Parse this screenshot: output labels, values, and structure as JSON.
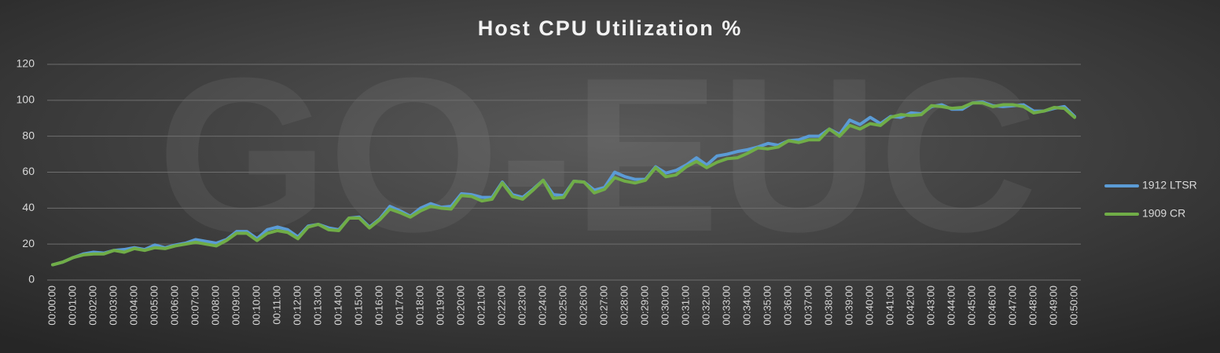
{
  "chart_data": {
    "type": "line",
    "title": "Host CPU Utilization %",
    "watermark": "GO-EUC",
    "categories": [
      "00:00:00",
      null,
      "00:01:00",
      null,
      "00:02:00",
      null,
      "00:03:00",
      null,
      "00:04:00",
      null,
      "00:05:00",
      null,
      "00:06:00",
      null,
      "00:07:00",
      null,
      "00:08:00",
      null,
      "00:09:00",
      null,
      "00:10:00",
      null,
      "00:11:00",
      null,
      "00:12:00",
      null,
      "00:13:00",
      null,
      "00:14:00",
      null,
      "00:15:00",
      null,
      "00:16:00",
      null,
      "00:17:00",
      null,
      "00:18:00",
      null,
      "00:19:00",
      null,
      "00:20:00",
      null,
      "00:21:00",
      null,
      "00:22:00",
      null,
      "00:23:00",
      null,
      "00:24:00",
      null,
      "00:25:00",
      null,
      "00:26:00",
      null,
      "00:27:00",
      null,
      "00:28:00",
      null,
      "00:29:00",
      null,
      "00:30:00",
      null,
      "00:31:00",
      null,
      "00:32:00",
      null,
      "00:33:00",
      null,
      "00:34:00",
      null,
      "00:35:00",
      null,
      "00:36:00",
      null,
      "00:37:00",
      null,
      "00:38:00",
      null,
      "00:39:00",
      null,
      "00:40:00",
      null,
      "00:41:00",
      null,
      "00:42:00",
      null,
      "00:43:00",
      null,
      "00:44:00",
      null,
      "00:45:00",
      null,
      "00:46:00",
      null,
      "00:47:00",
      null,
      "00:48:00",
      null,
      "00:49:00",
      null,
      "00:50:00"
    ],
    "series": [
      {
        "name": "1912 LTSR",
        "color": "#5b9bd5",
        "values": [
          8.5,
          10,
          12.5,
          14.5,
          15.5,
          15,
          16.5,
          17,
          18,
          17,
          19.5,
          18,
          19.5,
          20.5,
          22.5,
          21.5,
          20.5,
          22.5,
          27,
          27,
          23,
          28,
          29.5,
          28,
          24,
          30,
          31,
          29,
          28,
          34.5,
          35,
          29.5,
          34,
          41,
          38.5,
          35.5,
          40,
          42.5,
          40.5,
          41,
          48,
          47.5,
          46,
          46,
          54.5,
          47.5,
          46,
          50.5,
          55.5,
          47.5,
          47,
          55,
          54.5,
          50,
          51.5,
          60,
          57.5,
          56,
          56,
          63,
          59.5,
          61,
          64,
          68,
          64,
          69,
          70,
          71.5,
          72.5,
          74,
          76,
          75,
          77.5,
          78,
          80,
          80,
          84,
          81,
          89,
          86.5,
          90.5,
          87,
          91,
          90.5,
          93,
          92.5,
          96.5,
          97.5,
          95,
          95,
          98.5,
          99,
          97,
          96.5,
          97,
          97.5,
          94,
          94,
          95.5,
          96.5,
          91
        ]
      },
      {
        "name": "1909 CR",
        "color": "#70ad47",
        "values": [
          8.5,
          10,
          12.5,
          14,
          14.5,
          14.5,
          16.5,
          15.5,
          17.5,
          16.5,
          18,
          17.5,
          19,
          20,
          21,
          20,
          19,
          22,
          26,
          26,
          22,
          26,
          27.5,
          26.5,
          23,
          29.5,
          31,
          28,
          27.5,
          34.5,
          34.5,
          29,
          33.5,
          39.5,
          37.5,
          35,
          38.5,
          41,
          40,
          39.5,
          47,
          46.5,
          44,
          45,
          54,
          46.5,
          45,
          50,
          55.5,
          45.5,
          46,
          55,
          54.5,
          48.5,
          50.5,
          57,
          55,
          54,
          55.5,
          62.5,
          57.5,
          58.5,
          63,
          66,
          62.5,
          65.5,
          67.5,
          68,
          70.5,
          73.5,
          73,
          74,
          77.5,
          76.5,
          78,
          78,
          84,
          80,
          86,
          84,
          87,
          86,
          90.5,
          92,
          91.5,
          92,
          97,
          96.5,
          95.5,
          96,
          98.5,
          98.5,
          96.5,
          97.5,
          97.5,
          96.5,
          93,
          94,
          96,
          95.5,
          90.5
        ]
      }
    ],
    "ylim": [
      0,
      120
    ],
    "yticks": [
      0,
      20,
      40,
      60,
      80,
      100,
      120
    ],
    "grid": true,
    "legend": "right"
  }
}
